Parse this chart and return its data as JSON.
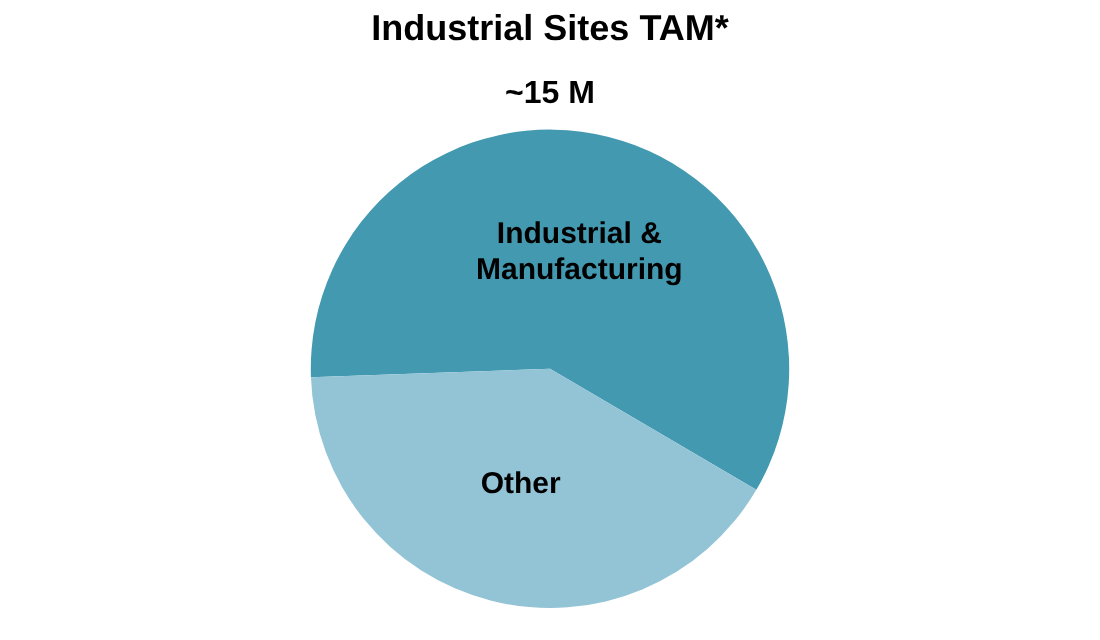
{
  "chart_data": {
    "type": "pie",
    "title": "Industrial Sites TAM*",
    "subtitle": "~15 M",
    "categories": [
      "Industrial & Manufacturing",
      "Other"
    ],
    "values": [
      59,
      41
    ],
    "colors": [
      "#4299b0",
      "#93c4d6"
    ],
    "legend": false
  }
}
